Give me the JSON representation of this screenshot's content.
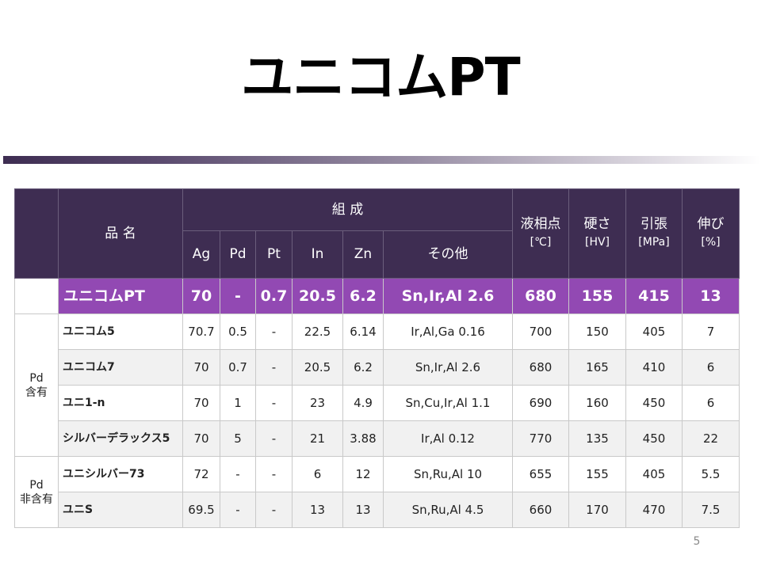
{
  "slide": {
    "title": "ユニコムPT",
    "page_number": "5"
  },
  "table": {
    "header": {
      "name": "品 名",
      "composition": "組 成",
      "ag": "Ag",
      "pd": "Pd",
      "pt": "Pt",
      "in": "In",
      "zn": "Zn",
      "other": "その他",
      "liquidus": "液相点",
      "liquidus_unit": "[℃]",
      "hardness": "硬さ",
      "hardness_unit": "[HV]",
      "tensile": "引張",
      "tensile_unit": "[MPa]",
      "elongation": "伸び",
      "elongation_unit": "[%]"
    },
    "groups": {
      "pd_containing": "Pd\n含有",
      "pd_free": "Pd\n非含有"
    },
    "featured": {
      "name": "ユニコムPT",
      "ag": "70",
      "pd": "-",
      "pt": "0.7",
      "in": "20.5",
      "zn": "6.2",
      "other": "Sn,Ir,Al 2.6",
      "liquidus": "680",
      "hardness": "155",
      "tensile": "415",
      "elongation": "13"
    },
    "rows": [
      {
        "name": "ユニコム5",
        "ag": "70.7",
        "pd": "0.5",
        "pt": "-",
        "in": "22.5",
        "zn": "6.14",
        "other": "Ir,Al,Ga 0.16",
        "liquidus": "700",
        "hardness": "150",
        "tensile": "405",
        "elongation": "7"
      },
      {
        "name": "ユニコム7",
        "ag": "70",
        "pd": "0.7",
        "pt": "-",
        "in": "20.5",
        "zn": "6.2",
        "other": "Sn,Ir,Al 2.6",
        "liquidus": "680",
        "hardness": "165",
        "tensile": "410",
        "elongation": "6"
      },
      {
        "name": "ユニ1-n",
        "ag": "70",
        "pd": "1",
        "pt": "-",
        "in": "23",
        "zn": "4.9",
        "other": "Sn,Cu,Ir,Al 1.1",
        "liquidus": "690",
        "hardness": "160",
        "tensile": "450",
        "elongation": "6"
      },
      {
        "name": "シルバーデラックス5",
        "ag": "70",
        "pd": "5",
        "pt": "-",
        "in": "21",
        "zn": "3.88",
        "other": "Ir,Al 0.12",
        "liquidus": "770",
        "hardness": "135",
        "tensile": "450",
        "elongation": "22"
      },
      {
        "name": "ユニシルバー73",
        "ag": "72",
        "pd": "-",
        "pt": "-",
        "in": "6",
        "zn": "12",
        "other": "Sn,Ru,Al 10",
        "liquidus": "655",
        "hardness": "155",
        "tensile": "405",
        "elongation": "5.5"
      },
      {
        "name": "ユニS",
        "ag": "69.5",
        "pd": "-",
        "pt": "-",
        "in": "13",
        "zn": "13",
        "other": "Sn,Ru,Al 4.5",
        "liquidus": "660",
        "hardness": "170",
        "tensile": "470",
        "elongation": "7.5"
      }
    ]
  },
  "colors": {
    "header_bg": "#3e2d52",
    "featured_bg": "#9249b3",
    "alt_row_bg": "#f1f1f1"
  }
}
